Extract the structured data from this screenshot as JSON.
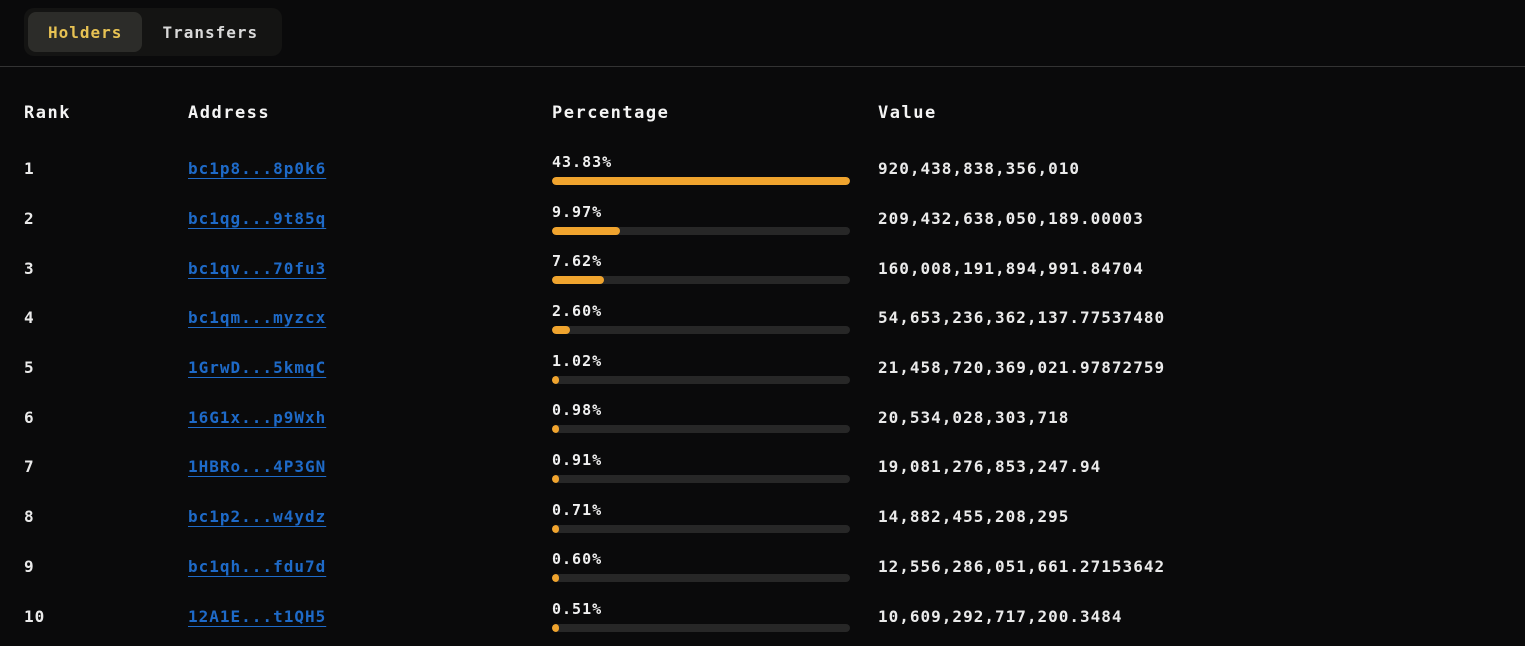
{
  "tabs": [
    {
      "label": "Holders",
      "active": true
    },
    {
      "label": "Transfers",
      "active": false
    }
  ],
  "table": {
    "headers": {
      "rank": "Rank",
      "address": "Address",
      "percentage": "Percentage",
      "value": "Value"
    },
    "rows": [
      {
        "rank": "1",
        "address": "bc1p8...8p0k6",
        "percentage": "43.83%",
        "percent_value": 43.83,
        "value": "920,438,838,356,010"
      },
      {
        "rank": "2",
        "address": "bc1qg...9t85q",
        "percentage": "9.97%",
        "percent_value": 9.97,
        "value": "209,432,638,050,189.00003"
      },
      {
        "rank": "3",
        "address": "bc1qv...70fu3",
        "percentage": "7.62%",
        "percent_value": 7.62,
        "value": "160,008,191,894,991.84704"
      },
      {
        "rank": "4",
        "address": "bc1qm...myzcx",
        "percentage": "2.60%",
        "percent_value": 2.6,
        "value": "54,653,236,362,137.77537480"
      },
      {
        "rank": "5",
        "address": "1GrwD...5kmqC",
        "percentage": "1.02%",
        "percent_value": 1.02,
        "value": "21,458,720,369,021.97872759"
      },
      {
        "rank": "6",
        "address": "16G1x...p9Wxh",
        "percentage": "0.98%",
        "percent_value": 0.98,
        "value": "20,534,028,303,718"
      },
      {
        "rank": "7",
        "address": "1HBRo...4P3GN",
        "percentage": "0.91%",
        "percent_value": 0.91,
        "value": "19,081,276,853,247.94"
      },
      {
        "rank": "8",
        "address": "bc1p2...w4ydz",
        "percentage": "0.71%",
        "percent_value": 0.71,
        "value": "14,882,455,208,295"
      },
      {
        "rank": "9",
        "address": "bc1qh...fdu7d",
        "percentage": "0.60%",
        "percent_value": 0.6,
        "value": "12,556,286,051,661.27153642"
      },
      {
        "rank": "10",
        "address": "12A1E...t1QH5",
        "percentage": "0.51%",
        "percent_value": 0.51,
        "value": "10,609,292,717,200.3484"
      }
    ]
  },
  "colors": {
    "accent-gold": "#e7c253",
    "link-blue": "#1e6ac8",
    "bar-fill": "#f0a42e",
    "bar-track": "#272727"
  }
}
